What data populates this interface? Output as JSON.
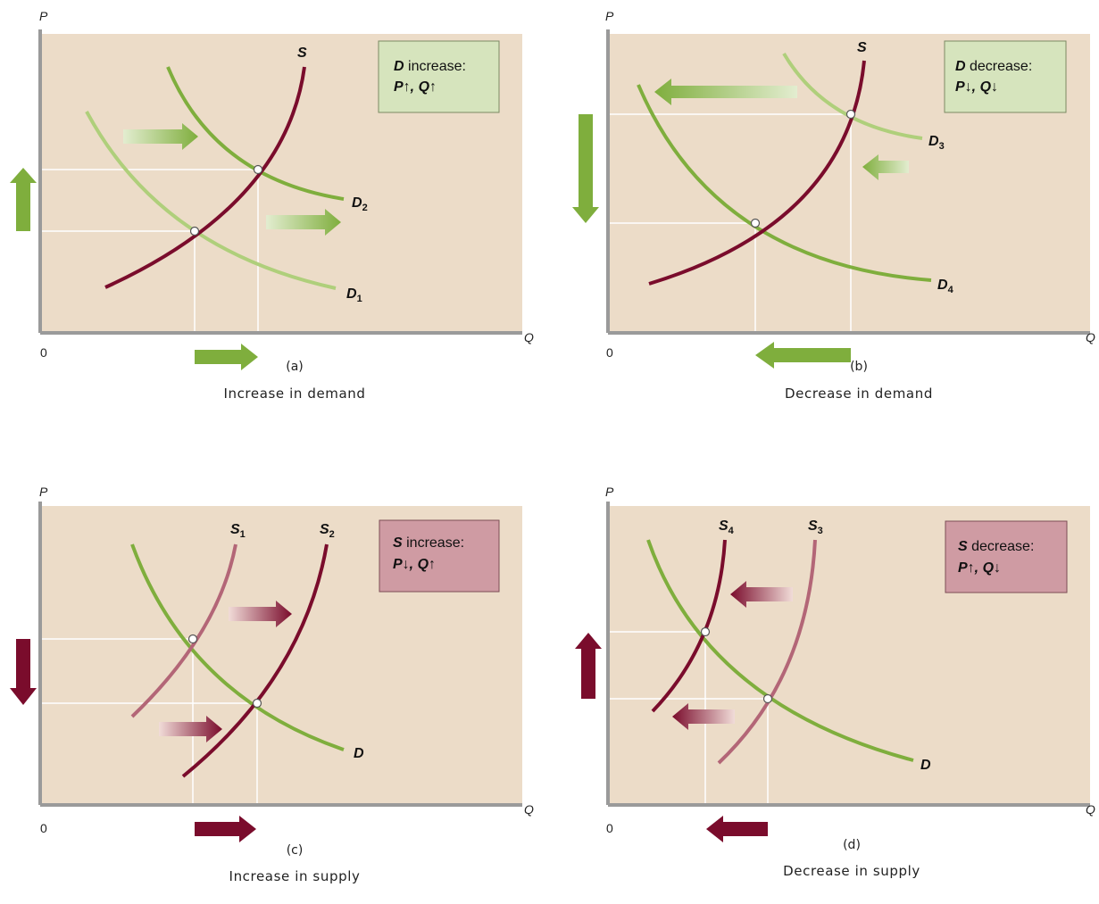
{
  "colors": {
    "panel_bg": "#ecdcc8",
    "axis": "#9a9a9a",
    "guide": "#ffffff",
    "supply_dark": "#7a0c2c",
    "supply_light": "#b36677",
    "demand_dark": "#7fae3d",
    "demand_light": "#afcf7b",
    "green_box": "#d6e4bd",
    "red_box": "#cf9ba3"
  },
  "axes": {
    "y_label": "P",
    "x_label": "Q",
    "origin_label": "0"
  },
  "panels": [
    {
      "id": "a",
      "caption_id": "(a)",
      "caption_title": "Increase in demand",
      "box": {
        "subject": "D",
        "verb": " increase:",
        "effect": "P↑, Q↑"
      },
      "curves": [
        {
          "kind": "supply",
          "label": "S",
          "sub": ""
        },
        {
          "kind": "demand",
          "label": "D",
          "sub": "1"
        },
        {
          "kind": "demand",
          "label": "D",
          "sub": "2"
        }
      ]
    },
    {
      "id": "b",
      "caption_id": "(b)",
      "caption_title": "Decrease in demand",
      "box": {
        "subject": "D",
        "verb": " decrease:",
        "effect": "P↓, Q↓"
      },
      "curves": [
        {
          "kind": "supply",
          "label": "S",
          "sub": ""
        },
        {
          "kind": "demand",
          "label": "D",
          "sub": "3"
        },
        {
          "kind": "demand",
          "label": "D",
          "sub": "4"
        }
      ]
    },
    {
      "id": "c",
      "caption_id": "(c)",
      "caption_title": "Increase in supply",
      "box": {
        "subject": "S",
        "verb": " increase:",
        "effect": "P↓, Q↑"
      },
      "curves": [
        {
          "kind": "supply",
          "label": "S",
          "sub": "1"
        },
        {
          "kind": "supply",
          "label": "S",
          "sub": "2"
        },
        {
          "kind": "demand",
          "label": "D",
          "sub": ""
        }
      ]
    },
    {
      "id": "d",
      "caption_id": "(d)",
      "caption_title": "Decrease in supply",
      "box": {
        "subject": "S",
        "verb": " decrease:",
        "effect": "P↑, Q↓"
      },
      "curves": [
        {
          "kind": "supply",
          "label": "S",
          "sub": "4"
        },
        {
          "kind": "supply",
          "label": "S",
          "sub": "3"
        },
        {
          "kind": "demand",
          "label": "D",
          "sub": ""
        }
      ]
    }
  ]
}
